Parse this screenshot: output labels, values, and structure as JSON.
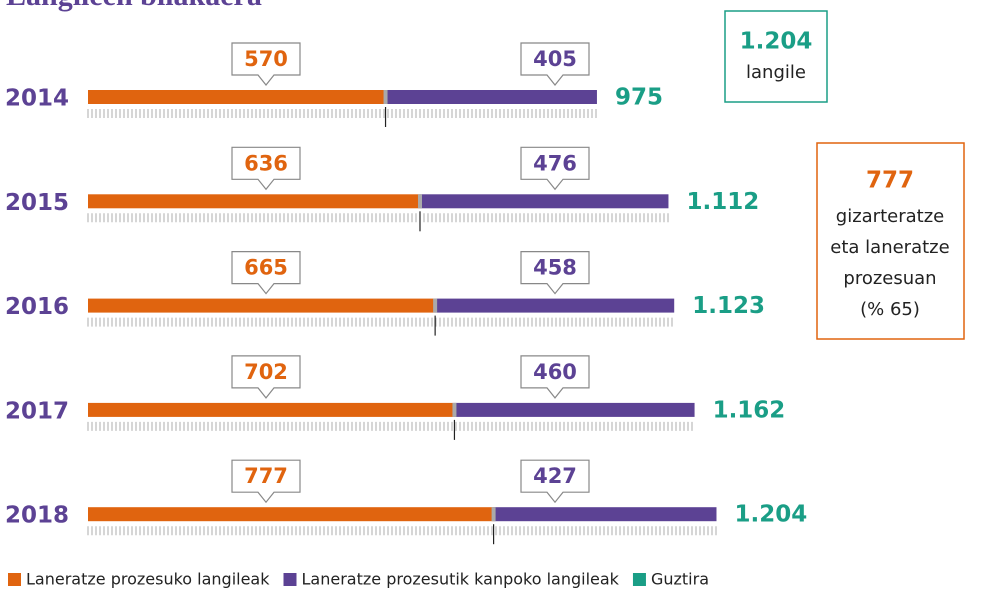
{
  "chart_data": {
    "type": "stacked-bar-horizontal",
    "title": "Langileen bilakaera",
    "categories": [
      "2014",
      "2015",
      "2016",
      "2017",
      "2018"
    ],
    "series": [
      {
        "name": "Laneratze prozesuko langileak",
        "color": "#e0640f",
        "values": [
          570,
          636,
          665,
          702,
          777
        ]
      },
      {
        "name": "Laneratze prozesutik kanpoko langileak",
        "color": "#5c4294",
        "values": [
          405,
          476,
          458,
          460,
          427
        ]
      }
    ],
    "totals": {
      "name": "Guztira",
      "color": "#1a9e86",
      "values": [
        975,
        1112,
        1123,
        1162,
        1204
      ],
      "value_labels": [
        "975",
        "1.112",
        "1.123",
        "1.162",
        "1.204"
      ]
    },
    "annotations": [
      {
        "value": "1.204",
        "lines": [
          "langile"
        ],
        "color": "#1a9e86"
      },
      {
        "value": "777",
        "lines": [
          "gizarteratze",
          "eta laneratze",
          "prozesuan",
          "(% 65)"
        ],
        "color": "#e0640f"
      }
    ]
  }
}
